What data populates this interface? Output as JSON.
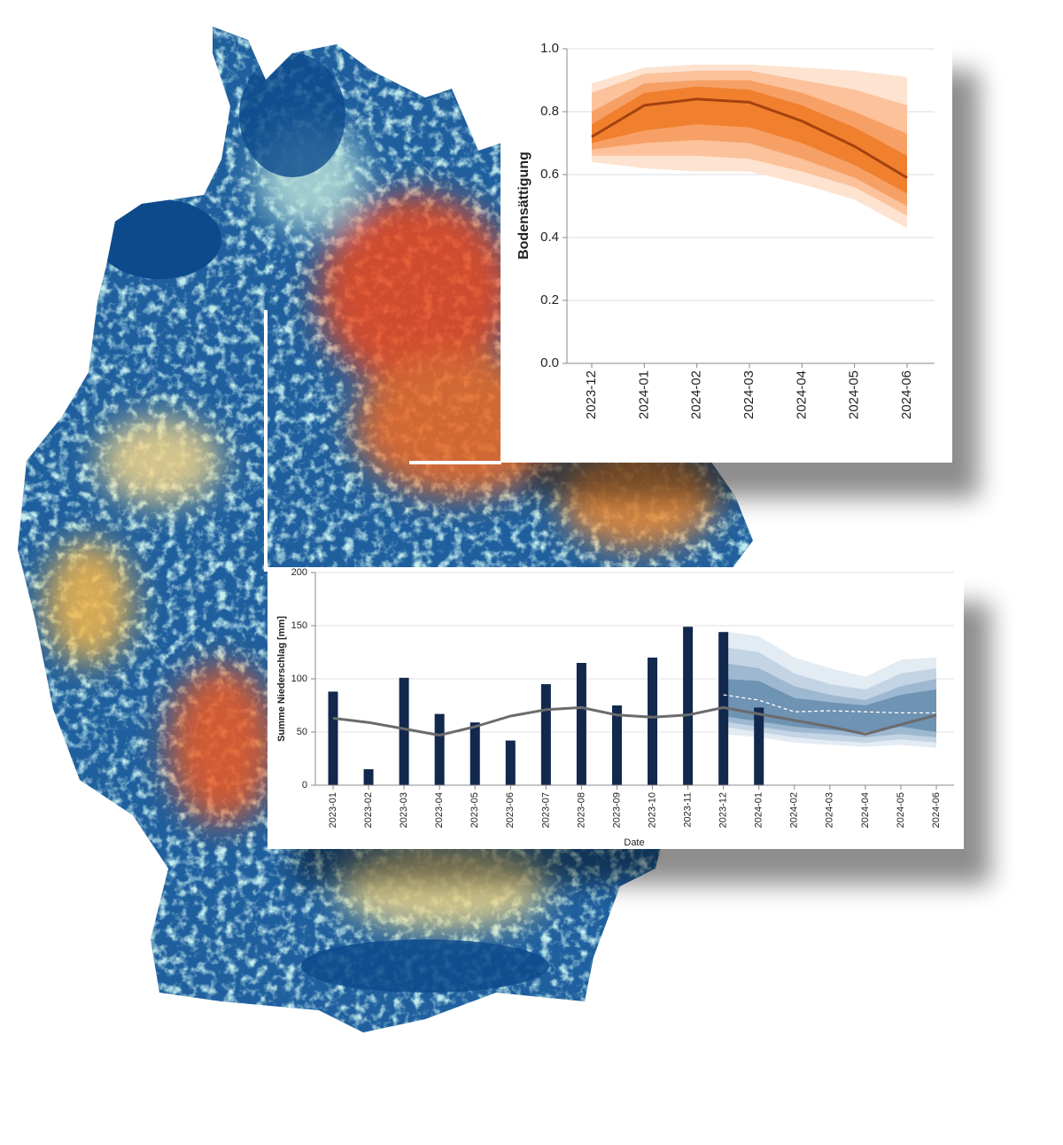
{
  "chart_data": [
    {
      "type": "line",
      "y_label": "Bodensättigung",
      "categories": [
        "2023-12",
        "2024-01",
        "2024-02",
        "2024-03",
        "2024-04",
        "2024-05",
        "2024-06"
      ],
      "ylim": [
        0,
        1
      ],
      "yticks": [
        {
          "value": 0,
          "label": "0.0"
        },
        0.2,
        0.4,
        0.6,
        0.8,
        {
          "value": 1,
          "label": "1.0"
        }
      ],
      "grid": true,
      "bands": [
        {
          "color": "#fde3d0",
          "lower": [
            0.64,
            0.62,
            0.61,
            0.61,
            0.57,
            0.52,
            0.43
          ],
          "upper": [
            0.89,
            0.94,
            0.95,
            0.95,
            0.94,
            0.93,
            0.91
          ]
        },
        {
          "color": "#fbc29b",
          "lower": [
            0.66,
            0.66,
            0.66,
            0.65,
            0.61,
            0.56,
            0.47
          ],
          "upper": [
            0.86,
            0.92,
            0.93,
            0.93,
            0.9,
            0.87,
            0.82
          ]
        },
        {
          "color": "#f7a066",
          "lower": [
            0.68,
            0.7,
            0.71,
            0.7,
            0.65,
            0.59,
            0.5
          ],
          "upper": [
            0.8,
            0.89,
            0.9,
            0.9,
            0.86,
            0.8,
            0.73
          ]
        },
        {
          "color": "#f0802e",
          "lower": [
            0.7,
            0.74,
            0.76,
            0.75,
            0.7,
            0.63,
            0.54
          ],
          "upper": [
            0.76,
            0.86,
            0.88,
            0.87,
            0.82,
            0.75,
            0.66
          ]
        }
      ],
      "series": [
        {
          "style": "line",
          "color": "#a4420f",
          "values": [
            0.72,
            0.82,
            0.84,
            0.83,
            0.77,
            0.69,
            0.59
          ]
        }
      ]
    },
    {
      "type": "bar",
      "y_label": "Summe Niederschlag [mm]",
      "x_label": "Date",
      "categories": [
        "2023-01",
        "2023-02",
        "2023-03",
        "2023-04",
        "2023-05",
        "2023-06",
        "2023-07",
        "2023-08",
        "2023-09",
        "2023-10",
        "2023-11",
        "2023-12",
        "2024-01",
        "2024-02",
        "2024-03",
        "2024-04",
        "2024-05",
        "2024-06"
      ],
      "ylim": [
        0,
        200
      ],
      "yticks": [
        0,
        50,
        100,
        150,
        200
      ],
      "grid": true,
      "bands": [
        {
          "color": "#e3ebf3",
          "lower": [
            null,
            null,
            null,
            null,
            null,
            null,
            null,
            null,
            null,
            null,
            null,
            48,
            45,
            40,
            38,
            36,
            38,
            35
          ],
          "upper": [
            null,
            null,
            null,
            null,
            null,
            null,
            null,
            null,
            null,
            null,
            null,
            145,
            140,
            120,
            110,
            102,
            118,
            120
          ]
        },
        {
          "color": "#c3d4e4",
          "lower": [
            null,
            null,
            null,
            null,
            null,
            null,
            null,
            null,
            null,
            null,
            null,
            55,
            50,
            45,
            42,
            40,
            43,
            40
          ],
          "upper": [
            null,
            null,
            null,
            null,
            null,
            null,
            null,
            null,
            null,
            null,
            null,
            130,
            125,
            105,
            95,
            90,
            105,
            110
          ]
        },
        {
          "color": "#9db8d0",
          "lower": [
            null,
            null,
            null,
            null,
            null,
            null,
            null,
            null,
            null,
            null,
            null,
            60,
            55,
            50,
            48,
            45,
            48,
            45
          ],
          "upper": [
            null,
            null,
            null,
            null,
            null,
            null,
            null,
            null,
            null,
            null,
            null,
            115,
            110,
            93,
            85,
            80,
            93,
            100
          ]
        },
        {
          "color": "#6e93b3",
          "lower": [
            null,
            null,
            null,
            null,
            null,
            null,
            null,
            null,
            null,
            null,
            null,
            65,
            60,
            55,
            52,
            50,
            55,
            50
          ],
          "upper": [
            null,
            null,
            null,
            null,
            null,
            null,
            null,
            null,
            null,
            null,
            null,
            100,
            98,
            82,
            78,
            75,
            85,
            90
          ]
        }
      ],
      "series": [
        {
          "style": "bar",
          "color": "#12284d",
          "values": [
            88,
            15,
            101,
            67,
            59,
            42,
            95,
            115,
            75,
            120,
            149,
            144,
            73,
            null,
            null,
            null,
            null,
            null
          ]
        },
        {
          "style": "line",
          "color": "#6b6b6b",
          "values": [
            63,
            59,
            53,
            47,
            55,
            65,
            71,
            73,
            66,
            64,
            66,
            73,
            67,
            61,
            55,
            48,
            57,
            66
          ]
        },
        {
          "style": "line",
          "dash": true,
          "color": "#ffffff",
          "values": [
            null,
            null,
            null,
            null,
            null,
            null,
            null,
            null,
            null,
            null,
            null,
            85,
            80,
            69,
            70,
            69,
            68,
            68
          ]
        }
      ]
    }
  ]
}
